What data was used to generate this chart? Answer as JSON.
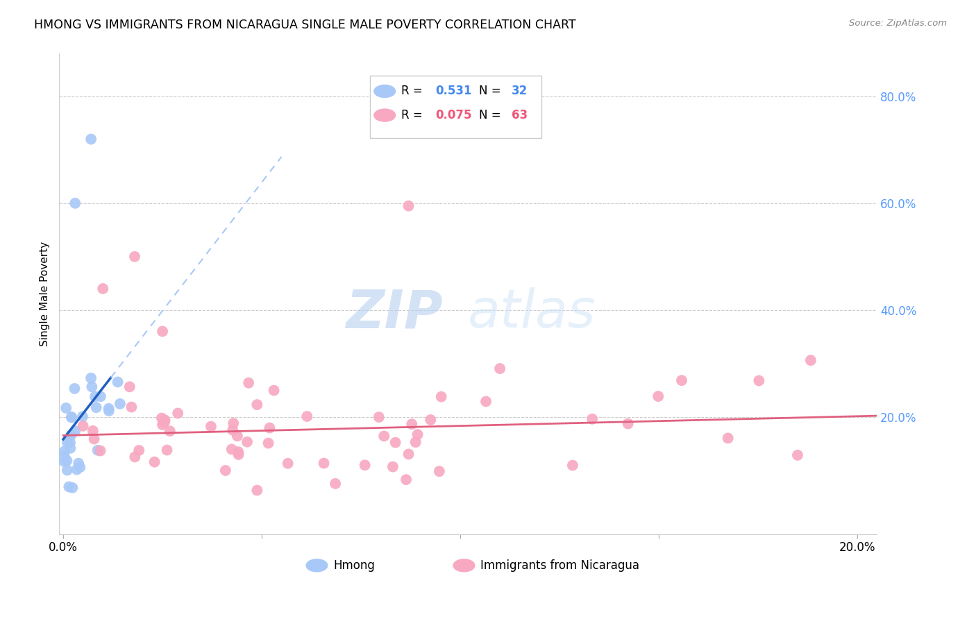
{
  "title": "HMONG VS IMMIGRANTS FROM NICARAGUA SINGLE MALE POVERTY CORRELATION CHART",
  "source": "Source: ZipAtlas.com",
  "ylabel": "Single Male Poverty",
  "xmin": -0.001,
  "xmax": 0.205,
  "ymin": -0.02,
  "ymax": 0.88,
  "R_hmong": 0.531,
  "N_hmong": 32,
  "R_nicaragua": 0.075,
  "N_nicaragua": 63,
  "hmong_color": "#a8c8f8",
  "hmong_line_color": "#2060c0",
  "nicaragua_color": "#f8a8c0",
  "nicaragua_line_color": "#e06080",
  "legend_color_blue": "#4488ee",
  "legend_color_pink": "#ee5577",
  "right_ytick_color": "#5599ff"
}
